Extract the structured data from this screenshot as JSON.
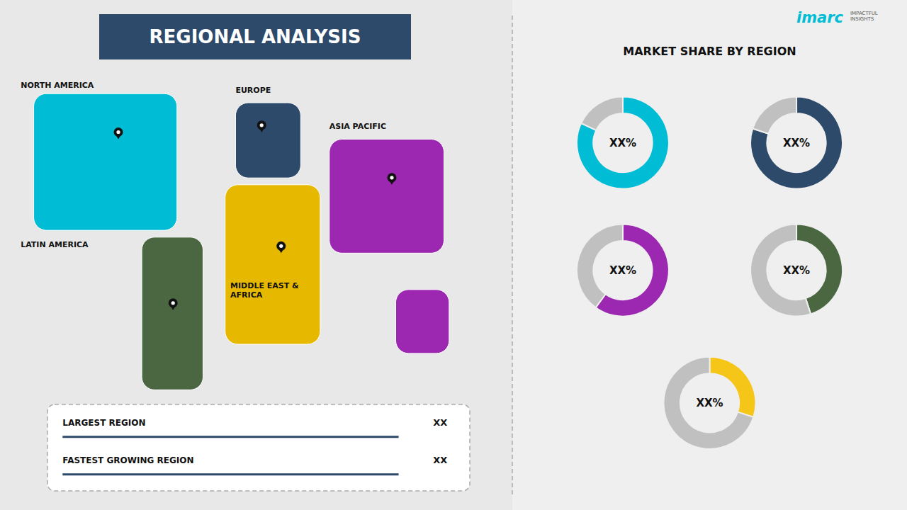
{
  "chart_data": [
    {
      "type": "map",
      "title": "REGIONAL ANALYSIS",
      "categories": [
        "NORTH AMERICA",
        "EUROPE",
        "ASIA PACIFIC",
        "MIDDLE EAST &\nAFRICA",
        "LATIN AMERICA"
      ],
      "colors": [
        "#00bcd4",
        "#2d4a6b",
        "#9c27b0",
        "#e6b800",
        "#4a6741"
      ],
      "annotations": [
        "imarc",
        "IMPACTFUL\nINSIGHTS"
      ]
    },
    {
      "type": "legend",
      "categories": [
        "LARGEST REGION",
        "FASTEST GROWING REGION"
      ],
      "annotations": [
        "XX",
        "XX"
      ],
      "color": "#2d4a6b"
    },
    {
      "type": "donut",
      "title": "MARKET SHARE BY REGION",
      "series": [
        {
          "values": [
            0.82,
            0.18
          ],
          "colors": [
            "#00bcd4",
            "#c0c0c0"
          ],
          "annotations": [
            "XX%"
          ]
        },
        {
          "values": [
            0.8,
            0.2
          ],
          "colors": [
            "#2d4a6b",
            "#c0c0c0"
          ],
          "annotations": [
            "XX%"
          ]
        },
        {
          "values": [
            0.6,
            0.4
          ],
          "colors": [
            "#9c27b0",
            "#c0c0c0"
          ],
          "annotations": [
            "XX%"
          ]
        },
        {
          "values": [
            0.45,
            0.55
          ],
          "colors": [
            "#4a6741",
            "#c0c0c0"
          ],
          "annotations": [
            "XX%"
          ]
        },
        {
          "values": [
            0.3,
            0.7
          ],
          "colors": [
            "#f5c518",
            "#c0c0c0"
          ],
          "annotations": [
            "XX%"
          ]
        }
      ]
    }
  ]
}
